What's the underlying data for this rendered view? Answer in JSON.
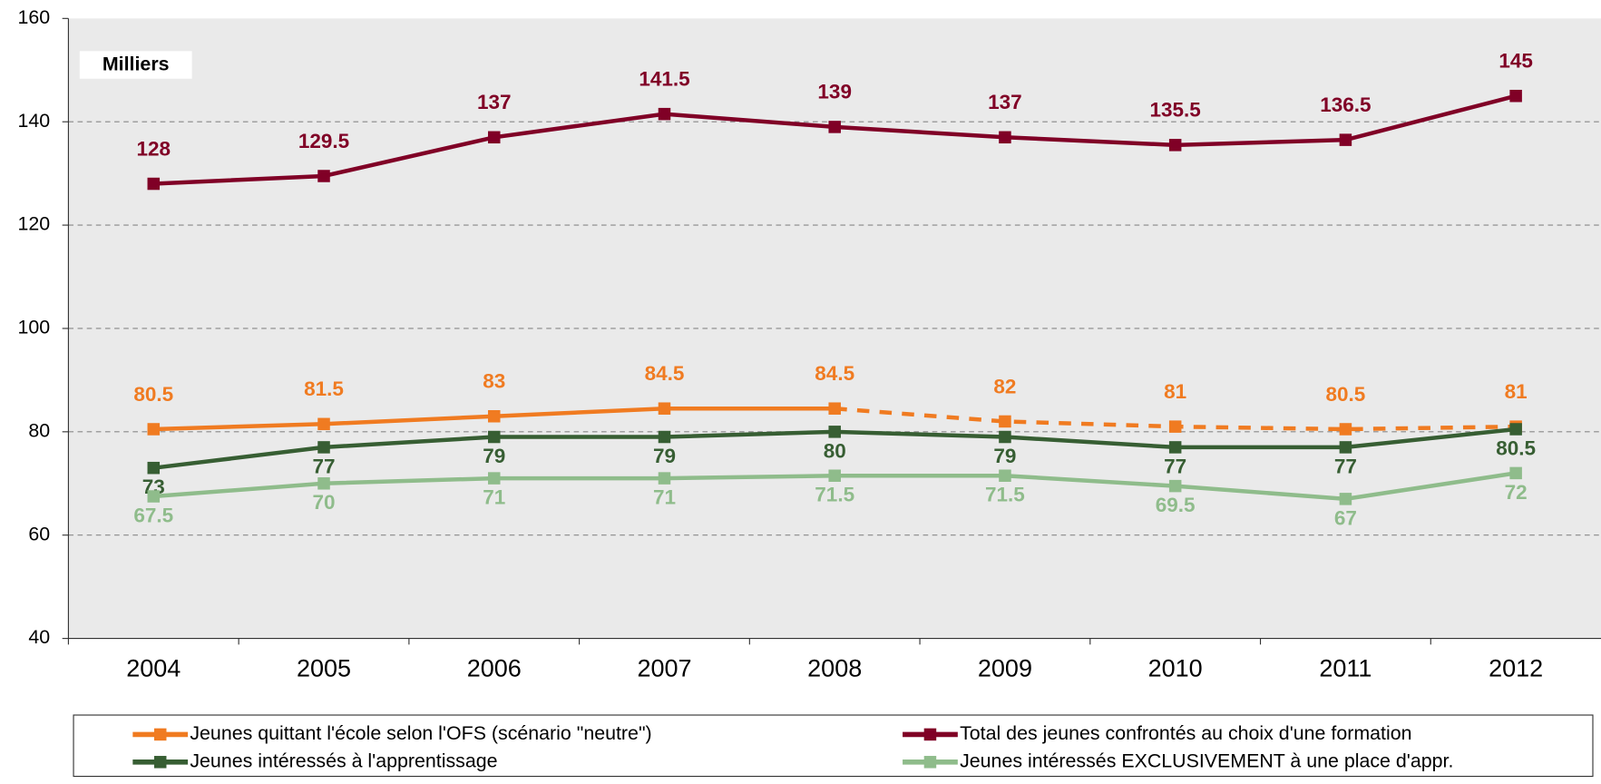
{
  "chart_data": {
    "type": "line",
    "annotation": "Milliers",
    "categories": [
      "2004",
      "2005",
      "2006",
      "2007",
      "2008",
      "2009",
      "2010",
      "2011",
      "2012"
    ],
    "series": [
      {
        "name": "Jeunes quittant l'école selon l'OFS (scénario \"neutre\")",
        "color": "#f07b21",
        "values": [
          80.5,
          81.5,
          83,
          84.5,
          84.5,
          82,
          81,
          80.5,
          81
        ],
        "dashed_from": "2008",
        "label_position": "above"
      },
      {
        "name": "Total des jeunes confrontés au choix d'une formation",
        "color": "#800026",
        "values": [
          128,
          129.5,
          137,
          141.5,
          139,
          137,
          135.5,
          136.5,
          145
        ],
        "label_position": "above"
      },
      {
        "name": "Jeunes intéressés à l'apprentissage",
        "color": "#375e33",
        "values": [
          73,
          77,
          79,
          79,
          80,
          79,
          77,
          77,
          80.5
        ],
        "label_position": "below"
      },
      {
        "name": "Jeunes intéressés EXCLUSIVEMENT à une place d'appr.",
        "color": "#8fbc8b",
        "values": [
          67.5,
          70,
          71,
          71,
          71.5,
          71.5,
          69.5,
          67,
          72
        ],
        "label_position": "below"
      }
    ],
    "ylim": [
      40,
      160
    ],
    "yticks": [
      40,
      60,
      80,
      100,
      120,
      140,
      160
    ],
    "grid": true
  }
}
